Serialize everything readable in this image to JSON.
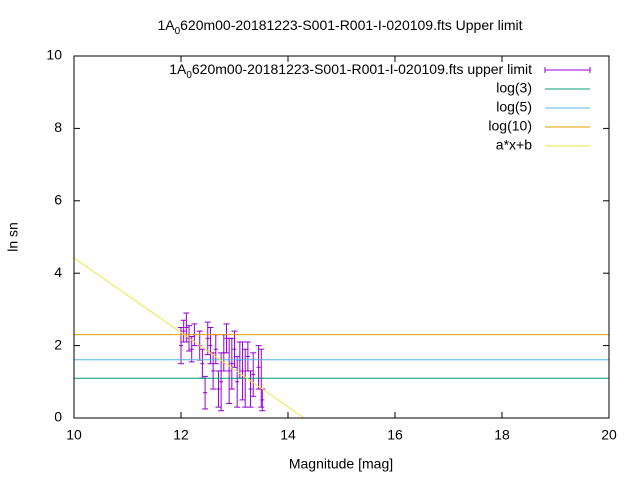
{
  "chart_data": {
    "type": "errorbar",
    "title": [
      "1A",
      "0",
      "620m00-20181223-S001-R001-I-020109.fts Upper limit"
    ],
    "xlabel": "Magnitude [mag]",
    "ylabel": "ln sn",
    "xlim": [
      10,
      20
    ],
    "xticks": [
      10,
      12,
      14,
      16,
      18,
      20
    ],
    "ylim": [
      0,
      10
    ],
    "yticks": [
      0,
      2,
      4,
      6,
      8,
      10
    ],
    "legend": "top-right",
    "series": [
      {
        "name": [
          "1A",
          "0",
          "620m00-20181223-S001-R001-I-020109.fts upper limit"
        ],
        "type": "errorbar",
        "color": "#9400d3",
        "x": [
          12.0,
          12.05,
          12.1,
          12.15,
          12.2,
          12.25,
          12.35,
          12.4,
          12.45,
          12.5,
          12.55,
          12.6,
          12.65,
          12.7,
          12.75,
          12.8,
          12.85,
          12.9,
          12.95,
          13.0,
          13.05,
          13.1,
          13.15,
          13.2,
          13.25,
          13.3,
          13.35,
          13.45,
          13.5,
          13.52
        ],
        "values": [
          2.0,
          2.4,
          2.5,
          2.2,
          1.9,
          2.3,
          2.0,
          1.5,
          0.7,
          2.2,
          2.0,
          1.3,
          1.9,
          0.8,
          1.0,
          1.8,
          2.2,
          1.3,
          1.5,
          1.9,
          1.0,
          1.6,
          1.3,
          1.1,
          1.7,
          0.8,
          1.2,
          1.4,
          1.1,
          0.5
        ],
        "errors": [
          0.5,
          0.3,
          0.4,
          0.35,
          0.35,
          0.3,
          0.4,
          0.4,
          0.45,
          0.45,
          0.5,
          0.5,
          0.4,
          0.5,
          0.8,
          0.5,
          0.4,
          0.9,
          0.7,
          0.5,
          0.7,
          0.5,
          0.8,
          0.8,
          0.4,
          0.5,
          0.6,
          0.6,
          0.8,
          0.3
        ]
      },
      {
        "name": "log(3)",
        "type": "line",
        "color": "#009e73",
        "x": [
          10,
          20
        ],
        "values": [
          1.0986,
          1.0986
        ]
      },
      {
        "name": "log(5)",
        "type": "line",
        "color": "#56b4e9",
        "x": [
          10,
          20
        ],
        "values": [
          1.6094,
          1.6094
        ]
      },
      {
        "name": "log(10)",
        "type": "line",
        "color": "#e69f00",
        "x": [
          10,
          20
        ],
        "values": [
          2.3026,
          2.3026
        ]
      },
      {
        "name": "a*x+b",
        "type": "line",
        "color": "#f0e442",
        "x": [
          10,
          14.3
        ],
        "values": [
          4.42,
          0
        ]
      }
    ]
  }
}
